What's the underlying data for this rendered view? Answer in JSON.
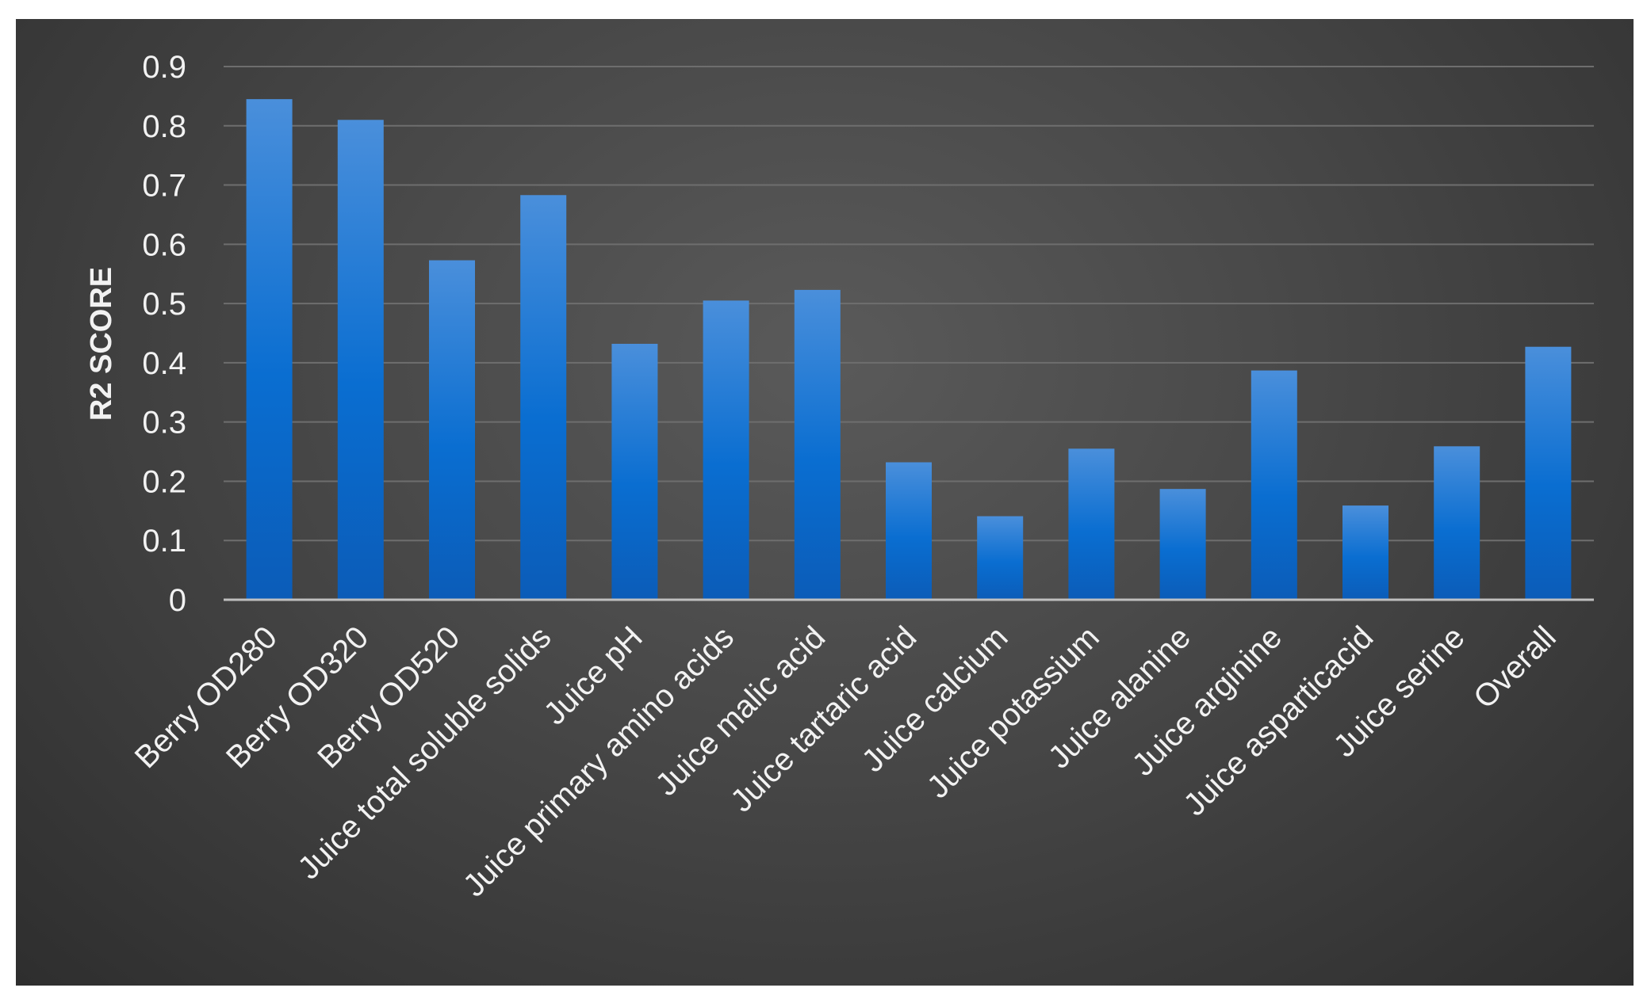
{
  "colors": {
    "bar_top": "#4a8fdb",
    "bar_mid": "#0a6ed1",
    "bar_bottom": "#0b5cb8",
    "background": "#474747",
    "text": "#f2f2f2"
  },
  "chart_data": {
    "type": "bar",
    "title": "",
    "xlabel": "",
    "ylabel": "R2 SCORE",
    "ylim": [
      0,
      0.9
    ],
    "yticks": [
      "0",
      "0.1",
      "0.2",
      "0.3",
      "0.4",
      "0.5",
      "0.6",
      "0.7",
      "0.8",
      "0.9"
    ],
    "grid": true,
    "categories": [
      "Berry OD280",
      "Berry OD320",
      "Berry OD520",
      "Juice total soluble solids",
      "Juice pH",
      "Juice primary amino acids",
      "Juice malic acid",
      "Juice tartaric acid",
      "Juice calcium",
      "Juice potassium",
      "Juice alanine",
      "Juice arginine",
      "Juice asparticacid",
      "Juice serine",
      "Overall"
    ],
    "values": [
      0.845,
      0.81,
      0.573,
      0.683,
      0.432,
      0.505,
      0.523,
      0.232,
      0.141,
      0.255,
      0.187,
      0.387,
      0.159,
      0.259,
      0.427
    ]
  }
}
